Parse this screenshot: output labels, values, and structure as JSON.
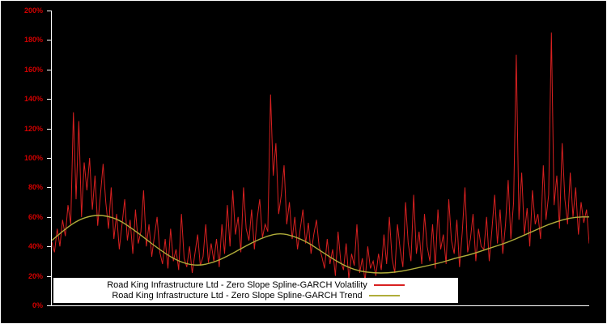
{
  "figure": {
    "background": "#000000",
    "border_color": "#ffffff"
  },
  "chart_data": {
    "type": "line",
    "title": "",
    "xlabel": "",
    "ylabel": "",
    "ylim": [
      0,
      200
    ],
    "grid": false,
    "legend_position": "bottom-center",
    "axis": {
      "label_color": "#d40000",
      "spine_color": "#ffffff"
    },
    "yticks": [
      {
        "v": 0,
        "label": "0%"
      },
      {
        "v": 20,
        "label": "20%"
      },
      {
        "v": 40,
        "label": "40%"
      },
      {
        "v": 60,
        "label": "60%"
      },
      {
        "v": 80,
        "label": "80%"
      },
      {
        "v": 100,
        "label": "100%"
      },
      {
        "v": 120,
        "label": "120%"
      },
      {
        "v": 140,
        "label": "140%"
      },
      {
        "v": 160,
        "label": "160%"
      },
      {
        "v": 180,
        "label": "180%"
      },
      {
        "v": 200,
        "label": "200%"
      }
    ],
    "series": [
      {
        "name": "Road King Infrastructure Ltd - Zero Slope Spline-GARCH Volatility",
        "type": "line",
        "color": "#d82020",
        "values": [
          43,
          36,
          52,
          40,
          58,
          47,
          68,
          55,
          131,
          72,
          125,
          60,
          97,
          78,
          100,
          65,
          88,
          54,
          75,
          96,
          70,
          52,
          80,
          45,
          62,
          38,
          55,
          72,
          44,
          58,
          35,
          65,
          42,
          50,
          78,
          40,
          55,
          33,
          47,
          60,
          36,
          28,
          45,
          25,
          52,
          30,
          38,
          24,
          62,
          32,
          26,
          40,
          22,
          35,
          48,
          27,
          33,
          55,
          29,
          42,
          30,
          45,
          26,
          55,
          35,
          68,
          40,
          78,
          48,
          60,
          36,
          80,
          52,
          44,
          65,
          38,
          58,
          72,
          46,
          55,
          50,
          143,
          88,
          110,
          62,
          75,
          95,
          55,
          70,
          45,
          60,
          38,
          52,
          65,
          42,
          56,
          35,
          48,
          58,
          40,
          33,
          25,
          45,
          28,
          38,
          20,
          50,
          30,
          24,
          42,
          18,
          35,
          27,
          55,
          22,
          32,
          16,
          40,
          25,
          30,
          20,
          35,
          24,
          48,
          28,
          60,
          32,
          22,
          55,
          38,
          26,
          70,
          42,
          30,
          75,
          35,
          50,
          28,
          62,
          40,
          30,
          55,
          25,
          65,
          38,
          48,
          28,
          72,
          44,
          35,
          58,
          26,
          50,
          80,
          36,
          45,
          62,
          30,
          52,
          40,
          38,
          60,
          30,
          52,
          75,
          42,
          65,
          35,
          55,
          85,
          45,
          70,
          170,
          58,
          90,
          48,
          66,
          40,
          78,
          55,
          62,
          45,
          95,
          58,
          75,
          185,
          68,
          88,
          52,
          110,
          72,
          55,
          90,
          60,
          80,
          48,
          70,
          56,
          65,
          42
        ]
      },
      {
        "name": "Road King Infrastructure Ltd - Zero Slope Spline-GARCH Trend",
        "type": "line-smooth",
        "color": "#b0ad3a",
        "values": [
          44,
          52,
          58,
          61,
          61,
          58,
          52,
          45,
          38,
          32,
          28,
          27,
          29,
          33,
          38,
          43,
          47,
          49,
          47,
          43,
          37,
          31,
          26,
          23,
          22,
          22,
          23,
          25,
          27,
          29,
          32,
          34,
          37,
          40,
          43,
          47,
          51,
          55,
          58,
          60,
          60
        ]
      }
    ],
    "legend": [
      {
        "label": "Road King Infrastructure Ltd - Zero Slope Spline-GARCH Volatility"
      },
      {
        "label": "Road King Infrastructure Ltd - Zero Slope Spline-GARCH Trend"
      }
    ]
  }
}
